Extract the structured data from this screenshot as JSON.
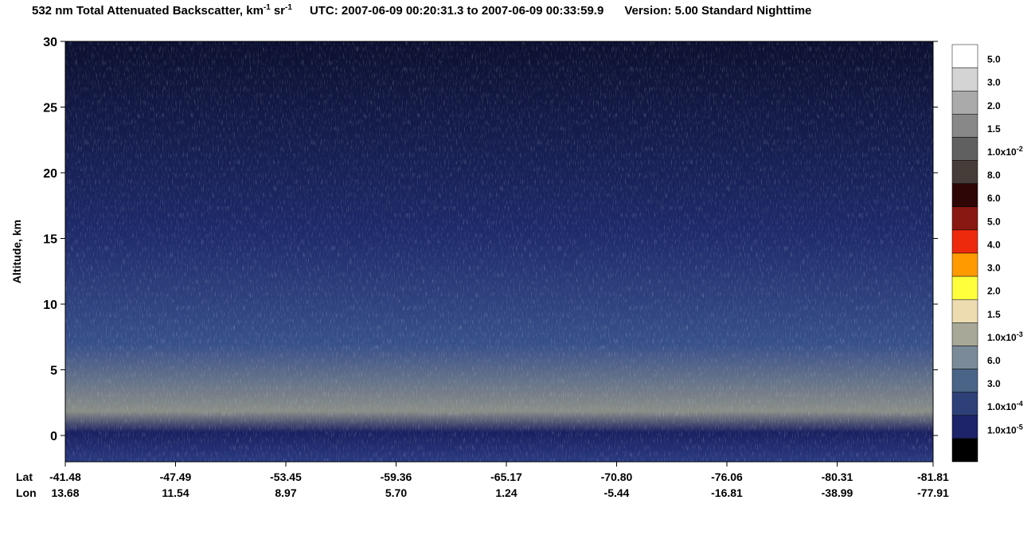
{
  "chart_data": {
    "type": "curtain",
    "title": {
      "name": "532 nm Total Attenuated Backscatter, km",
      "km_exp": "-1",
      "unit": "sr",
      "sr_exp": "-1",
      "utc": "UTC:  2007-06-09 00:20:31.3  to  2007-06-09 00:33:59.9",
      "version": "Version: 5.00  Standard  Nighttime"
    },
    "y_label": "Altitude, km",
    "ylim": [
      -2,
      30
    ],
    "yticks": [
      0,
      5,
      10,
      15,
      20,
      25,
      30
    ],
    "x_row_labels": [
      "Lat",
      "Lon"
    ],
    "lat": [
      "-41.48",
      "-47.49",
      "-53.45",
      "-59.36",
      "-65.17",
      "-70.80",
      "-76.06",
      "-80.31",
      "-81.81"
    ],
    "lon": [
      "13.68",
      "11.54",
      "8.97",
      "5.70",
      "1.24",
      "-5.44",
      "-16.81",
      "-38.99",
      "-77.91"
    ],
    "colorbar": [
      {
        "value": 0.05,
        "label": "5.0",
        "color": "#ffffff"
      },
      {
        "value": 0.03,
        "label": "3.0",
        "color": "#d4d4d4"
      },
      {
        "value": 0.02,
        "label": "2.0",
        "color": "#aaaaaa"
      },
      {
        "value": 0.015,
        "label": "1.5",
        "color": "#888888"
      },
      {
        "value": 0.01,
        "label": "1.0x10",
        "exponent": "-2",
        "color": "#606060"
      },
      {
        "value": 0.008,
        "label": "8.0",
        "color": "#463c38"
      },
      {
        "value": 0.006,
        "label": "6.0",
        "color": "#2e0606"
      },
      {
        "value": 0.005,
        "label": "5.0",
        "color": "#8a1812"
      },
      {
        "value": 0.004,
        "label": "4.0",
        "color": "#ee2a0c"
      },
      {
        "value": 0.003,
        "label": "3.0",
        "color": "#ff9a00"
      },
      {
        "value": 0.002,
        "label": "2.0",
        "color": "#ffff3c"
      },
      {
        "value": 0.0015,
        "label": "1.5",
        "color": "#ecdcb0"
      },
      {
        "value": 0.001,
        "label": "1.0x10",
        "exponent": "-3",
        "color": "#a8a898"
      },
      {
        "value": 0.0006,
        "label": "6.0",
        "color": "#7a8a98"
      },
      {
        "value": 0.0003,
        "label": "3.0",
        "color": "#4a6488"
      },
      {
        "value": 0.0001,
        "label": "1.0x10",
        "exponent": "-4",
        "color": "#2e4078"
      },
      {
        "value": 1e-05,
        "label": "1.0x10",
        "exponent": "-5",
        "color": "#1e246a"
      }
    ],
    "under_color": "#000000"
  }
}
